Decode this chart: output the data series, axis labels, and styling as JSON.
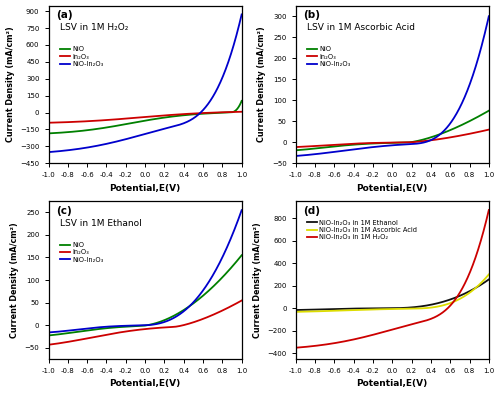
{
  "xlim": [
    -1.0,
    1.0
  ],
  "xlabel": "Potential,E(V)",
  "ylabel": "Current Density (mA/cm²)",
  "panel_a": {
    "label": "(a)",
    "title": "LSV in 1M H₂O₂",
    "ylim": [
      -450,
      950
    ],
    "yticks": [
      -450,
      -300,
      -150,
      0,
      150,
      300,
      450,
      600,
      750,
      900
    ],
    "colors": {
      "NiO": "#008000",
      "In2O3": "#cc0000",
      "NiO_In2O3": "#0000cc"
    },
    "legend": [
      "NiO",
      "In₂O₃",
      "NiO-In₂O₃"
    ]
  },
  "panel_b": {
    "label": "(b)",
    "title": "LSV in 1M Ascorbic Acid",
    "ylim": [
      -50,
      325
    ],
    "yticks": [
      -50,
      0,
      50,
      100,
      150,
      200,
      250,
      300
    ],
    "colors": {
      "NiO": "#008000",
      "In2O3": "#cc0000",
      "NiO_In2O3": "#0000cc"
    },
    "legend": [
      "NiO",
      "In₂O₃",
      "NiO-In₂O₃"
    ]
  },
  "panel_c": {
    "label": "(c)",
    "title": "LSV in 1M Ethanol",
    "ylim": [
      -75,
      275
    ],
    "yticks": [
      -50,
      0,
      50,
      100,
      150,
      200,
      250
    ],
    "colors": {
      "NiO": "#008000",
      "In2O3": "#cc0000",
      "NiO_In2O3": "#0000cc"
    },
    "legend": [
      "NiO",
      "In₂O₃",
      "NiO-In₂O₃"
    ]
  },
  "panel_d": {
    "label": "(d)",
    "title": "",
    "ylim": [
      -450,
      950
    ],
    "yticks": [
      -400,
      -200,
      0,
      200,
      400,
      600,
      800
    ],
    "colors": {
      "ethanol": "#111111",
      "ascorbic": "#dddd00",
      "H2O2": "#cc0000"
    },
    "legend": [
      "NiO-In₂O₃ in 1M Ethanol",
      "NiO-In₂O₃ in 1M Ascorbic Acid",
      "NiO-In₂O₃ in 1M H₂O₂"
    ]
  },
  "background_color": "#ffffff"
}
